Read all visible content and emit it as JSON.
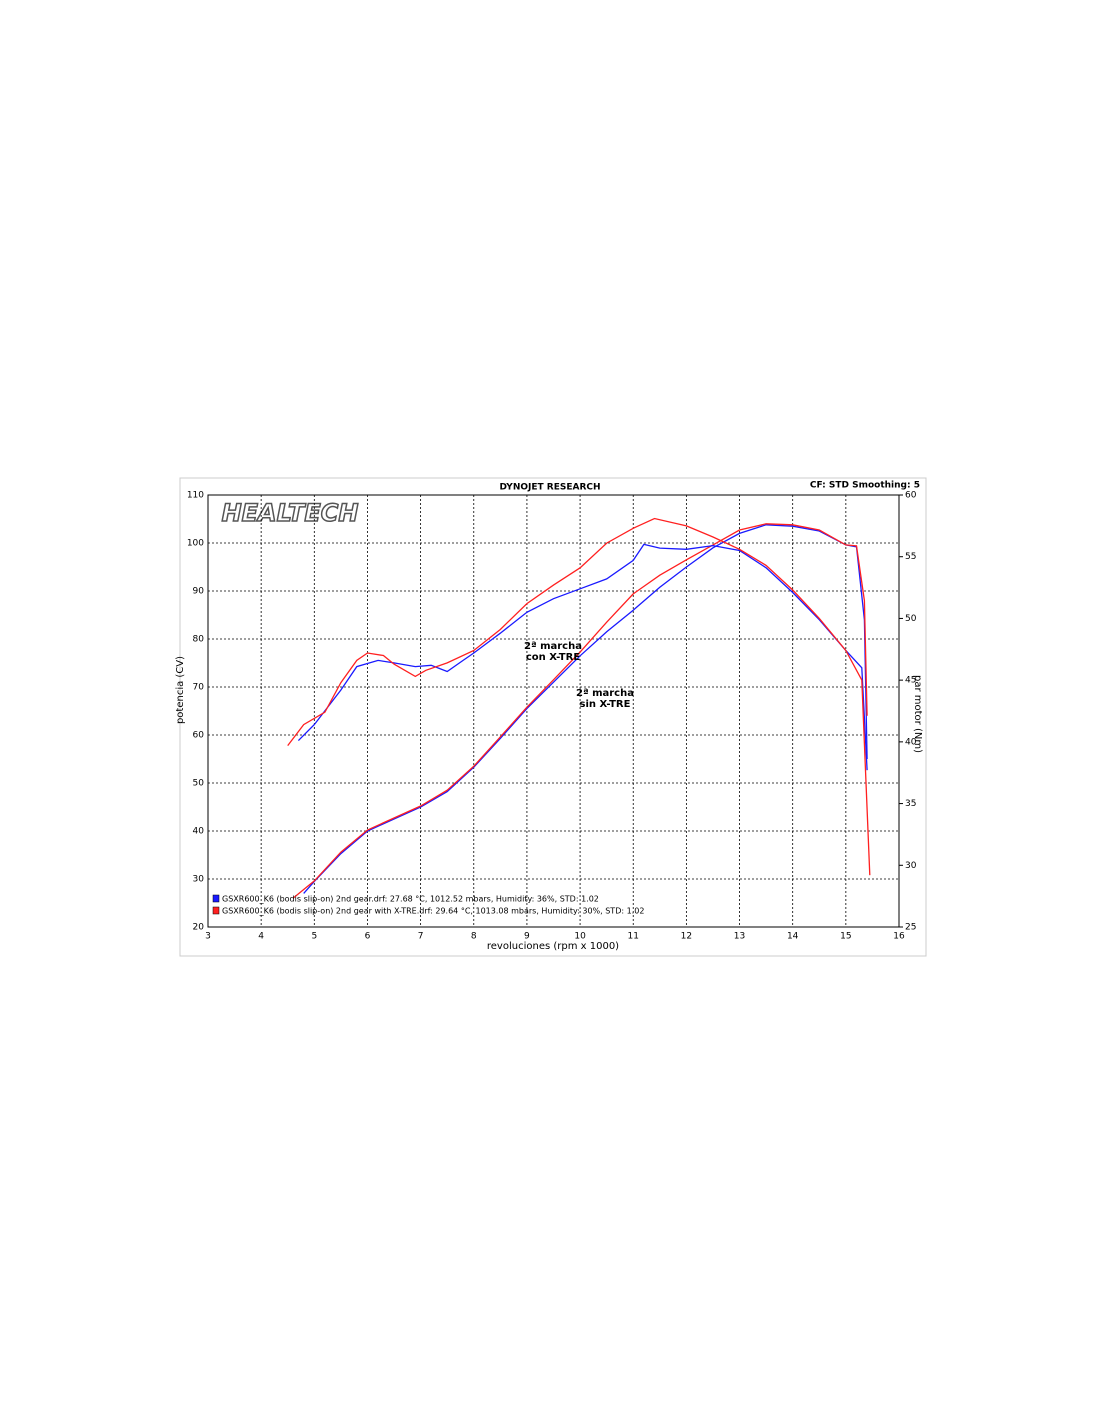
{
  "chart_data": {
    "type": "line",
    "title": "DYNOJET RESEARCH",
    "subtitle": "CF: STD  Smoothing: 5",
    "logo": "HEALTECH",
    "xlabel": "revoluciones (rpm x 1000)",
    "ylabel": "potencia (CV)",
    "y2label": "par motor (Nm)",
    "xlim": [
      3,
      16
    ],
    "xticks": [
      3,
      4,
      5,
      6,
      7,
      8,
      9,
      10,
      11,
      12,
      13,
      14,
      15,
      16
    ],
    "ylim": [
      20,
      110
    ],
    "yticks": [
      20,
      30,
      40,
      50,
      60,
      70,
      80,
      90,
      100,
      110
    ],
    "y2lim": [
      25,
      60
    ],
    "y2ticks": [
      25,
      30,
      35,
      40,
      45,
      50,
      55,
      60
    ],
    "grid": true,
    "series": [
      {
        "name": "GSXR600_K6 (bodis slip-on) 2nd gear.drf: 27.68 °C, 1012.52 mbars, Humidity: 36%, STD: 1.02",
        "color": "#1a1aff",
        "x": [
          4.8,
          5.0,
          5.5,
          6.0,
          6.5,
          7.0,
          7.5,
          8.0,
          8.5,
          9.0,
          9.5,
          10.0,
          10.5,
          11.0,
          11.5,
          12.0,
          12.5,
          13.0,
          13.5,
          14.0,
          14.5,
          15.0,
          15.2,
          15.35,
          15.4
        ],
        "values": [
          27,
          29.5,
          35.3,
          40,
          42.5,
          45,
          48.2,
          53.3,
          59.3,
          65.5,
          71,
          76.5,
          81.5,
          86,
          90.8,
          95,
          99,
          102,
          103.8,
          103.5,
          102.5,
          99.6,
          99.2,
          84,
          55
        ]
      },
      {
        "name": "GSXR600_K6 (bodis slip-on) 2nd gear with X-TRE.drf: 29.64 °C, 1013.08 mbars, Humidity: 30%, STD: 1.02",
        "color": "#ff2020",
        "x": [
          4.6,
          5.0,
          5.5,
          6.0,
          6.5,
          7.0,
          7.5,
          8.0,
          8.5,
          9.0,
          9.5,
          10.0,
          10.5,
          11.0,
          11.5,
          12.0,
          12.5,
          13.0,
          13.5,
          14.0,
          14.5,
          15.0,
          15.2,
          15.35,
          15.4
        ],
        "values": [
          26,
          29.6,
          35.6,
          40.2,
          42.7,
          45.2,
          48.5,
          53.5,
          59.6,
          65.8,
          71.5,
          77.3,
          83.5,
          89.4,
          93.3,
          96.5,
          99.6,
          102.7,
          104,
          103.8,
          102.7,
          99.6,
          99.4,
          88,
          64
        ]
      },
      {
        "axis": "y2",
        "color": "#1a1aff",
        "x": [
          4.7,
          5.0,
          5.5,
          5.8,
          6.2,
          6.5,
          6.9,
          7.2,
          7.5,
          7.8,
          8.0,
          8.5,
          9.0,
          9.5,
          10.0,
          10.5,
          11.0,
          11.2,
          11.5,
          12.0,
          12.5,
          13.0,
          13.5,
          14.0,
          14.5,
          15.0,
          15.3,
          15.4
        ],
        "values": [
          40.1,
          41.4,
          44.2,
          46.1,
          46.6,
          46.4,
          46.1,
          46.2,
          45.7,
          46.6,
          47.2,
          48.8,
          50.5,
          51.6,
          52.4,
          53.2,
          54.7,
          56,
          55.7,
          55.6,
          55.9,
          55.5,
          54.1,
          52.1,
          49.9,
          47.4,
          46,
          37.7
        ]
      },
      {
        "axis": "y2",
        "color": "#ff2020",
        "x": [
          4.5,
          4.8,
          5.2,
          5.5,
          5.8,
          6.0,
          6.3,
          6.5,
          6.9,
          7.1,
          7.5,
          8.0,
          8.5,
          9.0,
          9.5,
          10.0,
          10.5,
          11.0,
          11.4,
          12.0,
          12.5,
          13.0,
          13.5,
          14.0,
          14.5,
          15.0,
          15.3,
          15.45
        ],
        "values": [
          39.7,
          41.4,
          42.4,
          44.8,
          46.6,
          47.2,
          47,
          46.3,
          45.3,
          45.8,
          46.4,
          47.4,
          49.1,
          51.2,
          52.7,
          54.1,
          56.1,
          57.3,
          58.1,
          57.5,
          56.6,
          55.6,
          54.3,
          52.3,
          50,
          47.4,
          45,
          29.2
        ]
      }
    ],
    "annotations": [
      {
        "lines": [
          "2ª marcha",
          "con X-TRE"
        ],
        "color": "#ff2020"
      },
      {
        "lines": [
          "2ª marcha",
          "sin X-TRE"
        ],
        "color": "#1a1aff"
      }
    ]
  }
}
